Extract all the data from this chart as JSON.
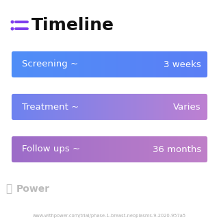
{
  "title": "Timeline",
  "bg_color": "#ffffff",
  "icon_color": "#7c3aed",
  "title_color": "#111111",
  "title_fontsize": 18,
  "rows": [
    {
      "label": "Screening ~",
      "value": "3 weeks",
      "color_left": "#4f8ef7",
      "color_right": "#5b7ef5"
    },
    {
      "label": "Treatment ~",
      "value": "Varies",
      "color_left": "#6b82f0",
      "color_right": "#c080d0"
    },
    {
      "label": "Follow ups ~",
      "value": "36 months",
      "color_left": "#9b6bc8",
      "color_right": "#c080c8"
    }
  ],
  "row_text_color": "#ffffff",
  "row_label_fontsize": 9.5,
  "row_value_fontsize": 9.5,
  "watermark": "Power",
  "watermark_color": "#bbbbbb",
  "url_text": "www.withpower.com/trial/phase-1-breast-neoplasms-9-2020-957a5",
  "url_color": "#aaaaaa",
  "url_fontsize": 4.8
}
